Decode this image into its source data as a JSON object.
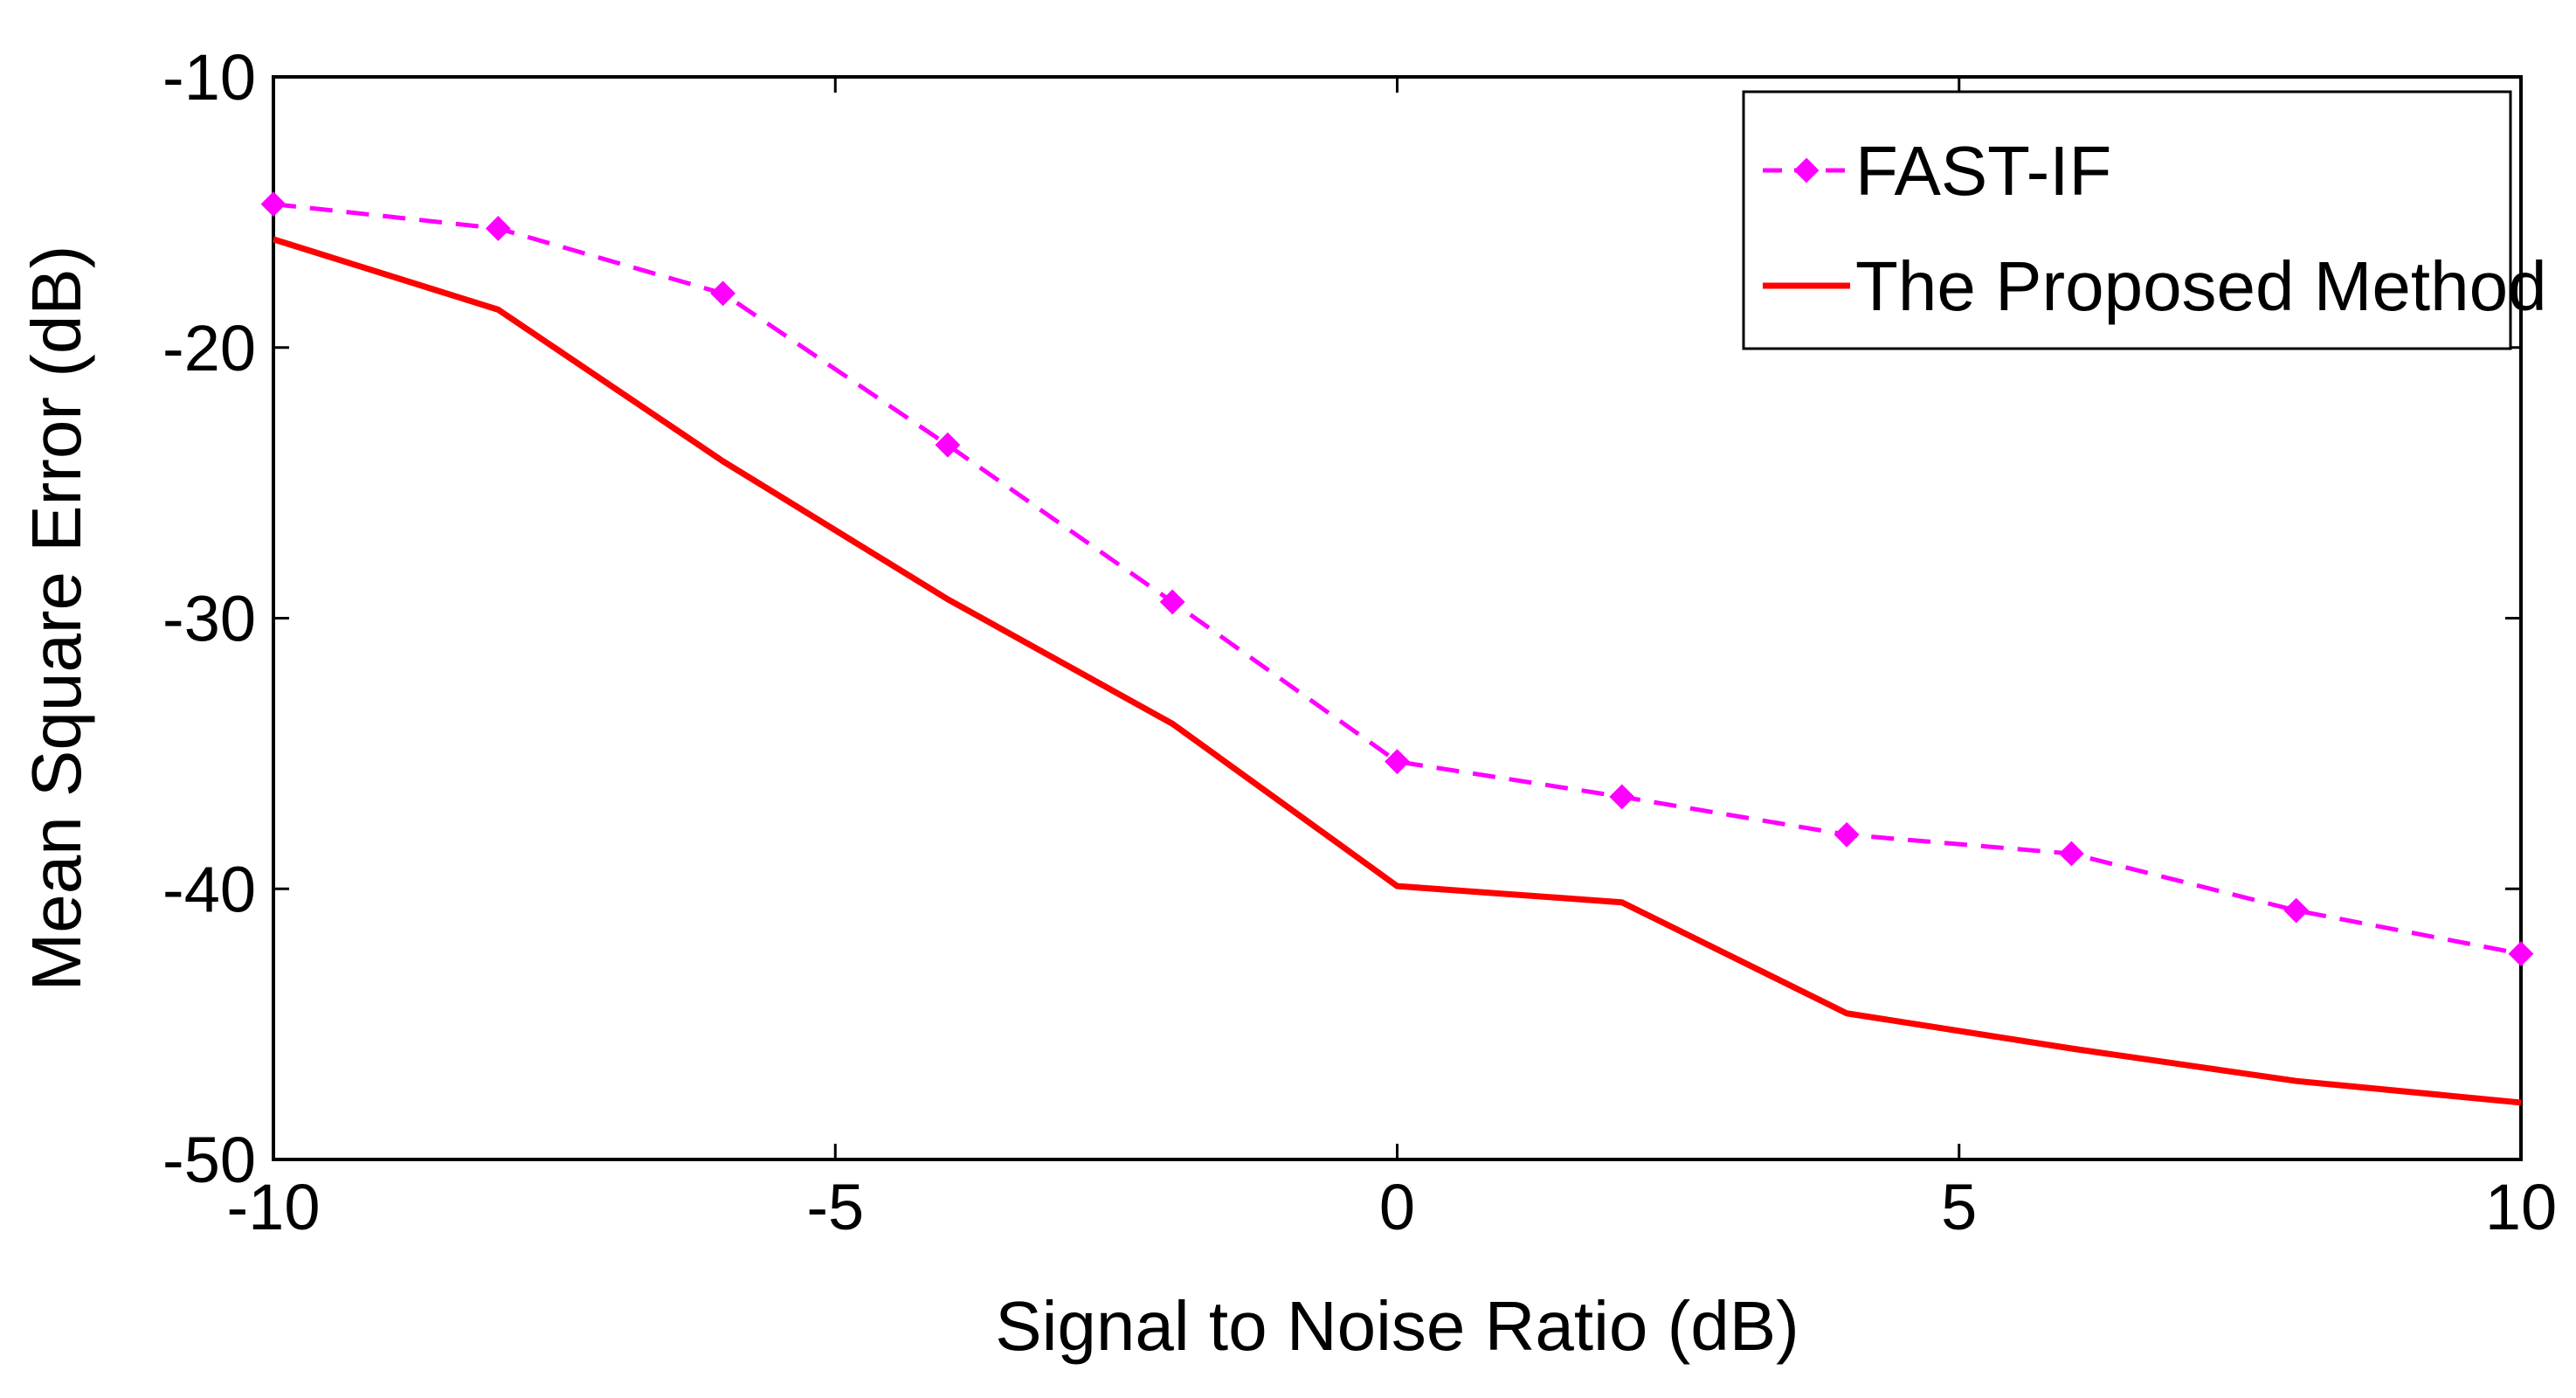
{
  "chart_data": {
    "type": "line",
    "title": "",
    "xlabel": "Signal to Noise Ratio (dB)",
    "ylabel": "Mean Square Error (dB)",
    "xlim": [
      -10,
      10
    ],
    "ylim": [
      -50,
      -10
    ],
    "xticks": [
      -10,
      -5,
      0,
      5,
      10
    ],
    "yticks": [
      -10,
      -20,
      -30,
      -40,
      -50
    ],
    "xtick_labels": [
      "-10",
      "-5",
      "0",
      "5",
      "10"
    ],
    "ytick_labels": [
      "-10",
      "-20",
      "-30",
      "-40",
      "-50"
    ],
    "grid": false,
    "legend_position": "top-right",
    "x": [
      -10,
      -8,
      -6,
      -4,
      -2,
      0,
      2,
      4,
      6,
      8,
      10
    ],
    "series": [
      {
        "name": "FAST-IF",
        "color": "#ff00ff",
        "style": "dashed",
        "marker": "diamond",
        "values": [
          -14.7,
          -15.6,
          -18.0,
          -23.6,
          -29.4,
          -35.3,
          -36.6,
          -38.0,
          -38.7,
          -40.8,
          -42.4
        ]
      },
      {
        "name": "The Proposed Method",
        "color": "#ff0000",
        "style": "solid",
        "marker": "none",
        "values": [
          -16.0,
          -18.6,
          -24.2,
          -29.3,
          -33.9,
          -39.9,
          -40.5,
          -44.6,
          -45.9,
          -47.1,
          -47.9
        ]
      }
    ]
  }
}
